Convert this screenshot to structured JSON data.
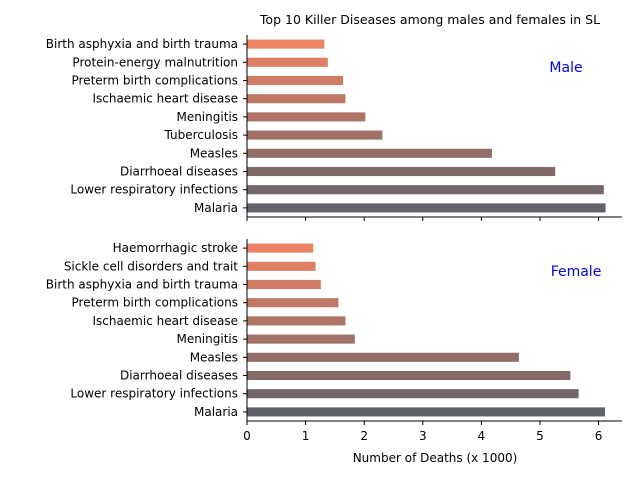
{
  "chart_data": {
    "type": "bar",
    "orientation": "horizontal",
    "title": "Top 10 Killer Diseases among males and females in SL",
    "xlabel": "Number of Deaths (x 1000)",
    "xlim": [
      0,
      6.4
    ],
    "xticks": [
      "0",
      "1",
      "2",
      "3",
      "4",
      "5",
      "6"
    ],
    "grid": false,
    "panels": [
      {
        "label": "Male",
        "categories": [
          "Birth asphyxia and birth trauma",
          "Protein-energy malnutrition",
          "Preterm birth complications",
          "Ischaemic heart disease",
          "Meningitis",
          "Tuberculosis",
          "Measles",
          "Diarrhoeal diseases",
          "Lower respiratory infections",
          "Malaria"
        ],
        "values": [
          1.32,
          1.38,
          1.64,
          1.68,
          2.02,
          2.31,
          4.18,
          5.26,
          6.09,
          6.12
        ]
      },
      {
        "label": "Female",
        "categories": [
          "Haemorrhagic stroke",
          "Sickle cell disorders and trait",
          "Birth asphyxia and birth trauma",
          "Preterm birth complications",
          "Ischaemic heart disease",
          "Meningitis",
          "Measles",
          "Diarrhoeal diseases",
          "Lower respiratory infections",
          "Malaria"
        ],
        "values": [
          1.13,
          1.17,
          1.26,
          1.56,
          1.68,
          1.84,
          4.64,
          5.52,
          5.66,
          6.11
        ]
      }
    ],
    "colors": {
      "gradient_start": "#ee8265",
      "gradient_end": "#626369",
      "panel_label": "#0000ff"
    }
  }
}
